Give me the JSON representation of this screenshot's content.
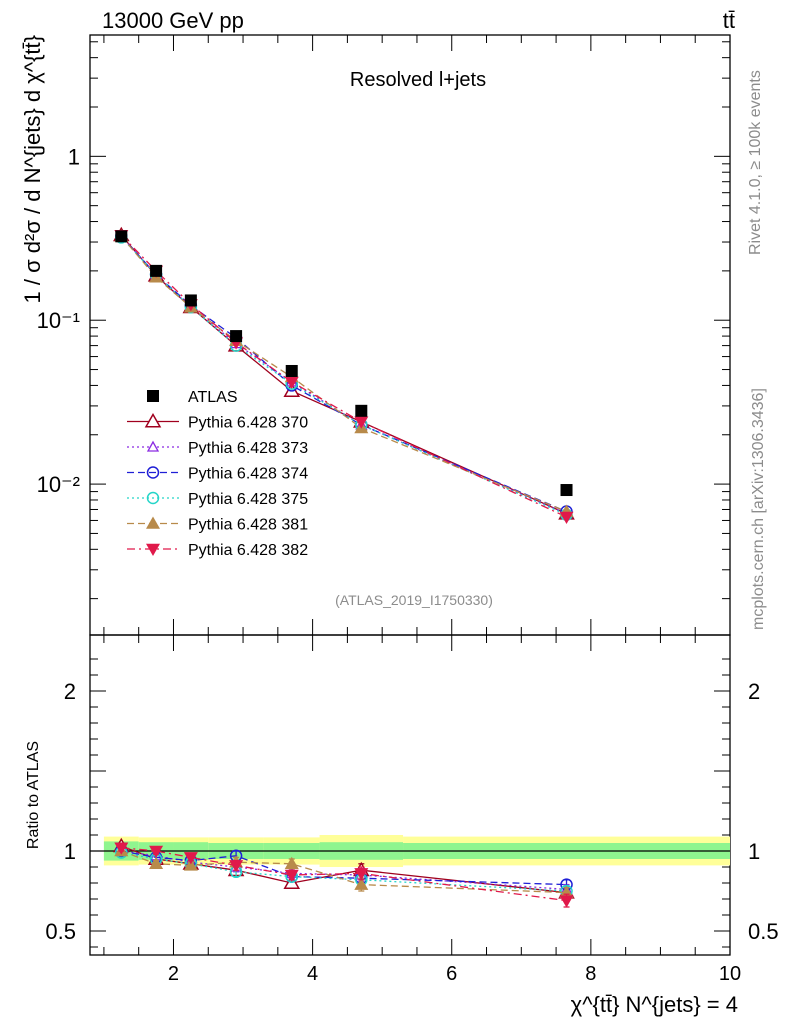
{
  "header": {
    "left": "13000 GeV pp",
    "right": "tt̄"
  },
  "side_labels": {
    "rivet": "Rivet 4.1.0, ≥ 100k events",
    "mcplots": "mcplots.cern.ch [arXiv:1306.3436]"
  },
  "colors": {
    "ATLAS": "#000000",
    "Pythia 6.428 370": "#a0001e",
    "Pythia 6.428 373": "#8a2be2",
    "Pythia 6.428 374": "#1f1fd6",
    "Pythia 6.428 375": "#25d5c8",
    "Pythia 6.428 381": "#b88a4a",
    "Pythia 6.428 382": "#e0194a",
    "band_inner": "#8ff58f",
    "band_outer": "#ffff99"
  },
  "chart_data": [
    {
      "type": "line",
      "title": "Resolved l+jets",
      "ref_label": "(ATLAS_2019_I1750330)",
      "ylabel": "1 / σ d²σ / d N^{jets} d χ^{tt̄}",
      "yscale": "log",
      "ylim": [
        0.0012,
        5.5
      ],
      "xlim": [
        0.8,
        10
      ],
      "legend_position": "center-left",
      "y_ticks": [
        {
          "value": 1,
          "label": "1"
        },
        {
          "value": 0.1,
          "label": "10⁻¹"
        },
        {
          "value": 0.01,
          "label": "10⁻²"
        }
      ],
      "x": [
        1.25,
        1.75,
        2.25,
        2.9,
        3.7,
        4.7,
        7.65
      ],
      "series": [
        {
          "name": "ATLAS",
          "marker": "square",
          "values": [
            0.325,
            0.2,
            0.132,
            0.08,
            0.049,
            0.028,
            0.0092
          ]
        },
        {
          "name": "Pythia 6.428 370",
          "marker": "triangle-open",
          "dash": "solid",
          "values": [
            0.33,
            0.187,
            0.12,
            0.07,
            0.037,
            0.024,
            0.0066
          ]
        },
        {
          "name": "Pythia 6.428 373",
          "marker": "triangle-open-small",
          "dash": "dotted",
          "values": [
            0.325,
            0.19,
            0.12,
            0.072,
            0.042,
            0.023,
            0.0066
          ]
        },
        {
          "name": "Pythia 6.428 374",
          "marker": "circle-open",
          "dash": "dashed",
          "values": [
            0.325,
            0.19,
            0.123,
            0.078,
            0.04,
            0.023,
            0.0068
          ]
        },
        {
          "name": "Pythia 6.428 375",
          "marker": "circle-open",
          "dash": "dotted",
          "values": [
            0.32,
            0.19,
            0.12,
            0.07,
            0.041,
            0.023,
            0.0065
          ]
        },
        {
          "name": "Pythia 6.428 381",
          "marker": "triangle-filled",
          "dash": "dashed",
          "values": [
            0.325,
            0.183,
            0.12,
            0.075,
            0.045,
            0.022,
            0.0068
          ]
        },
        {
          "name": "Pythia 6.428 382",
          "marker": "triangle-down-filled",
          "dash": "dashdot",
          "values": [
            0.33,
            0.2,
            0.125,
            0.073,
            0.042,
            0.024,
            0.0063
          ]
        }
      ]
    },
    {
      "type": "line",
      "ylabel": "Ratio to ATLAS",
      "xlabel": "χ^{tt̄} N^{jets} = 4",
      "ylim": [
        0.35,
        2.35
      ],
      "xlim": [
        0.8,
        10
      ],
      "x_ticks": [
        2,
        4,
        6,
        8,
        10
      ],
      "y_ticks": [
        {
          "value": 0.5,
          "label": "0.5"
        },
        {
          "value": 1,
          "label": "1"
        },
        {
          "value": 2,
          "label": "2"
        }
      ],
      "x": [
        1.25,
        1.75,
        2.25,
        2.9,
        3.7,
        4.7,
        7.65
      ],
      "band": {
        "edges": [
          1.0,
          1.5,
          2.0,
          2.5,
          3.3,
          4.1,
          5.3,
          10.0
        ],
        "inner": [
          0.06,
          0.055,
          0.055,
          0.05,
          0.05,
          0.055,
          0.05
        ],
        "outer": [
          0.09,
          0.085,
          0.085,
          0.085,
          0.085,
          0.1,
          0.09
        ]
      },
      "series": [
        {
          "name": "Pythia 6.428 370",
          "values": [
            1.03,
            0.95,
            0.92,
            0.88,
            0.8,
            0.88,
            0.74
          ],
          "errors": [
            0.02,
            0.02,
            0.02,
            0.03,
            0.03,
            0.04,
            0.03
          ]
        },
        {
          "name": "Pythia 6.428 373",
          "values": [
            1.0,
            0.97,
            0.93,
            0.9,
            0.86,
            0.85,
            0.76
          ],
          "errors": [
            0.02,
            0.02,
            0.02,
            0.03,
            0.03,
            0.04,
            0.03
          ]
        },
        {
          "name": "Pythia 6.428 374",
          "values": [
            1.0,
            0.96,
            0.94,
            0.97,
            0.84,
            0.83,
            0.79
          ],
          "errors": [
            0.02,
            0.02,
            0.02,
            0.03,
            0.03,
            0.04,
            0.03
          ]
        },
        {
          "name": "Pythia 6.428 375",
          "values": [
            0.99,
            0.95,
            0.92,
            0.87,
            0.84,
            0.82,
            0.75
          ],
          "errors": [
            0.02,
            0.02,
            0.02,
            0.03,
            0.03,
            0.04,
            0.03
          ]
        },
        {
          "name": "Pythia 6.428 381",
          "values": [
            1.0,
            0.92,
            0.91,
            0.93,
            0.92,
            0.79,
            0.74
          ],
          "errors": [
            0.02,
            0.02,
            0.02,
            0.03,
            0.03,
            0.04,
            0.03
          ]
        },
        {
          "name": "Pythia 6.428 382",
          "values": [
            1.02,
            1.0,
            0.96,
            0.91,
            0.85,
            0.86,
            0.69
          ],
          "errors": [
            0.02,
            0.02,
            0.02,
            0.03,
            0.03,
            0.04,
            0.04
          ]
        }
      ]
    }
  ]
}
